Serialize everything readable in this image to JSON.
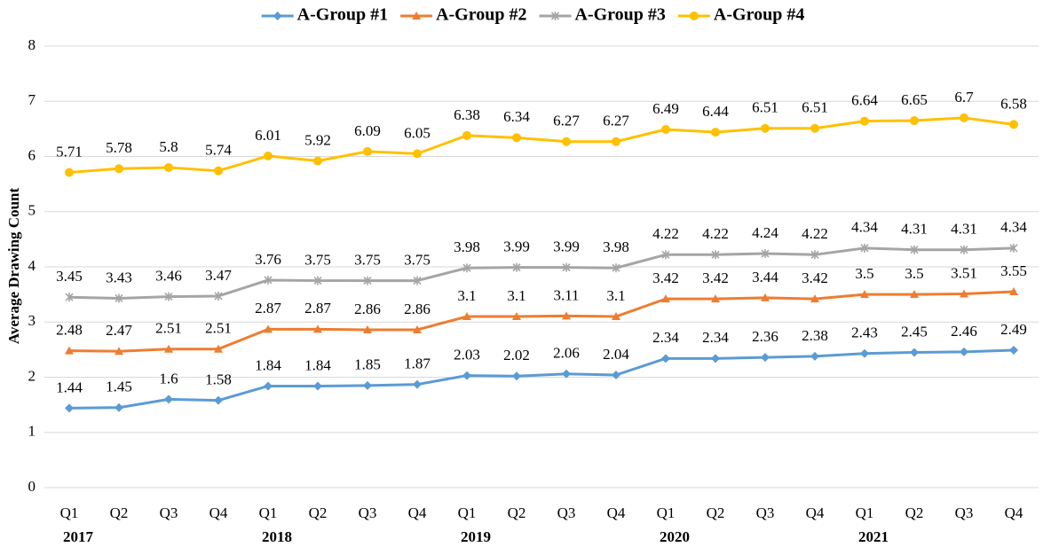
{
  "chart_data": {
    "type": "line",
    "y_label": "Average Drawing Count",
    "categories": [
      "Q1",
      "Q2",
      "Q3",
      "Q4",
      "Q1",
      "Q2",
      "Q3",
      "Q4",
      "Q1",
      "Q2",
      "Q3",
      "Q4",
      "Q1",
      "Q2",
      "Q3",
      "Q4",
      "Q1",
      "Q2",
      "Q3",
      "Q4"
    ],
    "year_labels": [
      "2017",
      "2018",
      "2019",
      "2020",
      "2021"
    ],
    "ylim": [
      0,
      8
    ],
    "yticks": [
      0,
      1,
      2,
      3,
      4,
      5,
      6,
      7,
      8
    ],
    "grid": true,
    "legend": "top",
    "series": [
      {
        "name": "A-Group #1",
        "color": "#5b9bd5",
        "marker": "diamond",
        "values": [
          1.44,
          1.45,
          1.6,
          1.58,
          1.84,
          1.84,
          1.85,
          1.87,
          2.03,
          2.02,
          2.06,
          2.04,
          2.34,
          2.34,
          2.36,
          2.38,
          2.43,
          2.45,
          2.46,
          2.49
        ]
      },
      {
        "name": "A-Group #2",
        "color": "#ed7d31",
        "marker": "triangle",
        "values": [
          2.48,
          2.47,
          2.51,
          2.51,
          2.87,
          2.87,
          2.86,
          2.86,
          3.1,
          3.1,
          3.11,
          3.1,
          3.42,
          3.42,
          3.44,
          3.42,
          3.5,
          3.5,
          3.51,
          3.55
        ]
      },
      {
        "name": "A-Group #3",
        "color": "#a5a5a5",
        "marker": "star",
        "values": [
          3.45,
          3.43,
          3.46,
          3.47,
          3.76,
          3.75,
          3.75,
          3.75,
          3.98,
          3.99,
          3.99,
          3.98,
          4.22,
          4.22,
          4.24,
          4.22,
          4.34,
          4.31,
          4.31,
          4.34
        ]
      },
      {
        "name": "A-Group #4",
        "color": "#ffc000",
        "marker": "circle",
        "values": [
          5.71,
          5.78,
          5.8,
          5.74,
          6.01,
          5.92,
          6.09,
          6.05,
          6.38,
          6.34,
          6.27,
          6.27,
          6.49,
          6.44,
          6.51,
          6.51,
          6.64,
          6.65,
          6.7,
          6.58
        ]
      }
    ]
  }
}
